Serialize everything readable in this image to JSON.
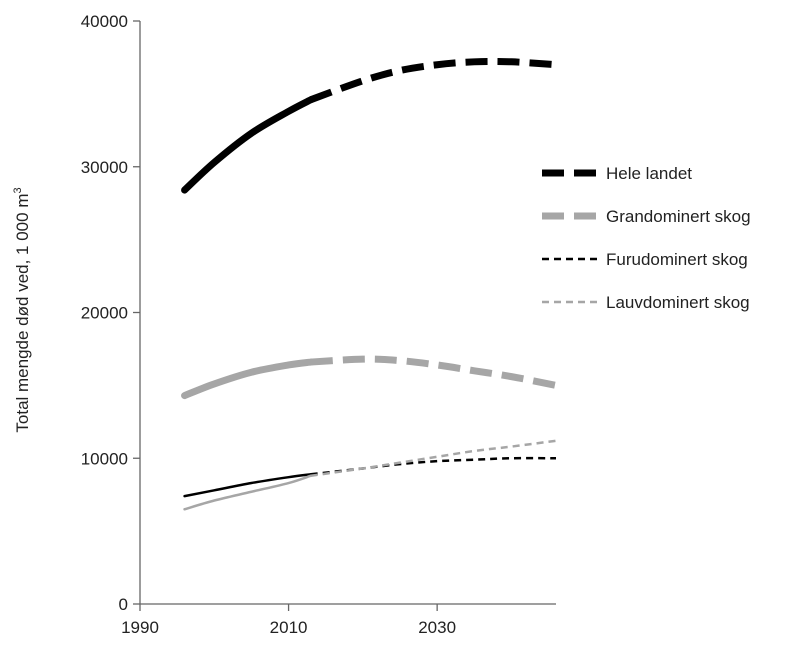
{
  "chart_data": {
    "type": "line",
    "title": "",
    "xlabel": "",
    "ylabel": "Total mengde død ved, 1 000 m",
    "ylabel_superscript": "3",
    "xlim": [
      1990,
      2046
    ],
    "ylim": [
      0,
      40000
    ],
    "xticks": [
      1990,
      2010,
      2030
    ],
    "yticks": [
      0,
      10000,
      20000,
      30000,
      40000
    ],
    "grid": false,
    "legend_position": "right",
    "observed_until": 2013,
    "series": [
      {
        "name": "Hele landet",
        "color": "#000000",
        "weight": "thick",
        "x": [
          1996,
          2000,
          2005,
          2010,
          2013,
          2020,
          2025,
          2030,
          2035,
          2040,
          2046
        ],
        "y": [
          28400,
          30300,
          32300,
          33800,
          34600,
          35900,
          36600,
          37000,
          37200,
          37200,
          37000
        ]
      },
      {
        "name": "Grandominert skog",
        "color": "#a6a6a6",
        "weight": "thick",
        "x": [
          1996,
          2000,
          2005,
          2010,
          2013,
          2020,
          2025,
          2030,
          2035,
          2040,
          2046
        ],
        "y": [
          14300,
          15100,
          15900,
          16400,
          16600,
          16800,
          16700,
          16400,
          16000,
          15600,
          15000
        ]
      },
      {
        "name": "Furudominert skog",
        "color": "#000000",
        "weight": "thin",
        "x": [
          1996,
          2000,
          2005,
          2010,
          2013,
          2020,
          2025,
          2030,
          2035,
          2040,
          2046
        ],
        "y": [
          7400,
          7800,
          8300,
          8700,
          8900,
          9300,
          9600,
          9800,
          9900,
          10000,
          10000
        ]
      },
      {
        "name": "Lauvdominert skog",
        "color": "#a6a6a6",
        "weight": "thin",
        "x": [
          1996,
          2000,
          2005,
          2010,
          2013,
          2020,
          2025,
          2030,
          2035,
          2040,
          2046
        ],
        "y": [
          6500,
          7100,
          7700,
          8300,
          8800,
          9300,
          9700,
          10100,
          10500,
          10800,
          11200
        ]
      }
    ]
  }
}
